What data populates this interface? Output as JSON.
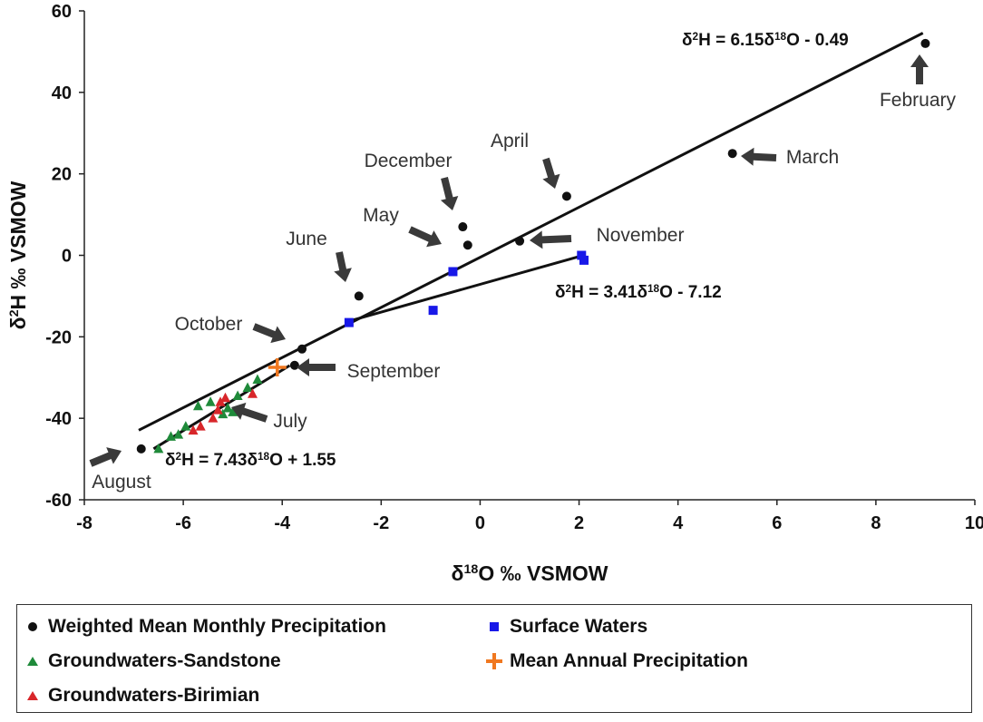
{
  "chart_data": {
    "type": "scatter",
    "xlabel": "δ18O ‰ VSMOW",
    "ylabel": "δ2H ‰ VSMOW",
    "xlim": [
      -8,
      10
    ],
    "ylim": [
      -60,
      60
    ],
    "xticks": [
      -8,
      -6,
      -4,
      -2,
      0,
      2,
      4,
      6,
      8,
      10
    ],
    "yticks": [
      -60,
      -40,
      -20,
      0,
      20,
      40,
      60
    ],
    "series": [
      {
        "name": "Weighted Mean Monthly Precipitation",
        "marker": "circle",
        "color": "#111111",
        "points": [
          {
            "label": "February",
            "x": 9.0,
            "y": 52
          },
          {
            "label": "March",
            "x": 5.1,
            "y": 25
          },
          {
            "label": "April",
            "x": 1.75,
            "y": 14.5
          },
          {
            "label": "December",
            "x": -0.35,
            "y": 7
          },
          {
            "label": "May",
            "x": -0.25,
            "y": 2.5
          },
          {
            "label": "November",
            "x": 0.8,
            "y": 3.5
          },
          {
            "label": "June",
            "x": -2.45,
            "y": -10
          },
          {
            "label": "October",
            "x": -3.6,
            "y": -23
          },
          {
            "label": "September",
            "x": -3.75,
            "y": -27
          },
          {
            "label": "August",
            "x": -6.85,
            "y": -47.5
          }
        ]
      },
      {
        "name": "Surface Waters",
        "marker": "square",
        "color": "#1818e8",
        "points": [
          {
            "x": 2.05,
            "y": 0
          },
          {
            "x": 2.1,
            "y": -1.2
          },
          {
            "x": -0.55,
            "y": -4
          },
          {
            "x": -0.95,
            "y": -13.5
          },
          {
            "x": -2.65,
            "y": -16.5
          }
        ]
      },
      {
        "name": "Groundwaters-Sandstone",
        "marker": "triangle",
        "color": "#1f8a3a",
        "points": [
          {
            "x": -6.5,
            "y": -47.5
          },
          {
            "x": -6.25,
            "y": -44.5
          },
          {
            "x": -6.1,
            "y": -44
          },
          {
            "x": -5.95,
            "y": -42
          },
          {
            "x": -5.7,
            "y": -37
          },
          {
            "x": -5.45,
            "y": -36
          },
          {
            "x": -5.2,
            "y": -39
          },
          {
            "x": -5.1,
            "y": -37.5
          },
          {
            "x": -4.9,
            "y": -34.5
          },
          {
            "x": -4.7,
            "y": -32.5
          },
          {
            "x": -4.5,
            "y": -30.5
          },
          {
            "x": -5.0,
            "y": -38.5
          }
        ]
      },
      {
        "name": "Groundwaters-Birimian",
        "marker": "triangle",
        "color": "#d8262a",
        "points": [
          {
            "x": -5.8,
            "y": -43
          },
          {
            "x": -5.65,
            "y": -42
          },
          {
            "x": -5.4,
            "y": -40
          },
          {
            "x": -5.3,
            "y": -38
          },
          {
            "x": -5.25,
            "y": -36
          },
          {
            "x": -5.15,
            "y": -35
          },
          {
            "x": -4.6,
            "y": -34
          }
        ]
      },
      {
        "name": "Mean Annual Precipitation",
        "marker": "plus",
        "color": "#f07820",
        "points": [
          {
            "x": -4.1,
            "y": -27.5
          }
        ]
      }
    ],
    "lines": [
      {
        "equation": "δ2H = 6.15δ18O - 0.49",
        "slope": 6.15,
        "intercept": -0.49,
        "x_range": [
          -6.9,
          8.95
        ]
      },
      {
        "equation": "δ2H = 3.41δ18O - 7.12",
        "slope": 3.41,
        "intercept": -7.12,
        "x_range": [
          -2.65,
          2.1
        ]
      },
      {
        "equation": "δ2H = 7.43δ18O + 1.55",
        "slope": 7.43,
        "intercept": 1.55,
        "x_range": [
          -6.6,
          -3.85
        ]
      }
    ],
    "annotations": [
      {
        "text": "February",
        "x": 9.0,
        "y": 52
      },
      {
        "text": "March",
        "x": 5.1,
        "y": 25
      },
      {
        "text": "April",
        "x": 1.75,
        "y": 14.5
      },
      {
        "text": "December",
        "x": -0.35,
        "y": 7
      },
      {
        "text": "May",
        "x": -0.25,
        "y": 2.5
      },
      {
        "text": "November",
        "x": 0.8,
        "y": 3.5
      },
      {
        "text": "June",
        "x": -2.45,
        "y": -10
      },
      {
        "text": "October",
        "x": -3.6,
        "y": -23
      },
      {
        "text": "September",
        "x": -3.75,
        "y": -27
      },
      {
        "text": "July",
        "x": -4.9,
        "y": -34.5
      },
      {
        "text": "August",
        "x": -6.85,
        "y": -47.5
      }
    ]
  },
  "legend": {
    "items": [
      "Weighted Mean Monthly Precipitation",
      "Surface Waters",
      "Groundwaters-Sandstone",
      "Mean Annual Precipitation",
      "Groundwaters-Birimian"
    ]
  }
}
